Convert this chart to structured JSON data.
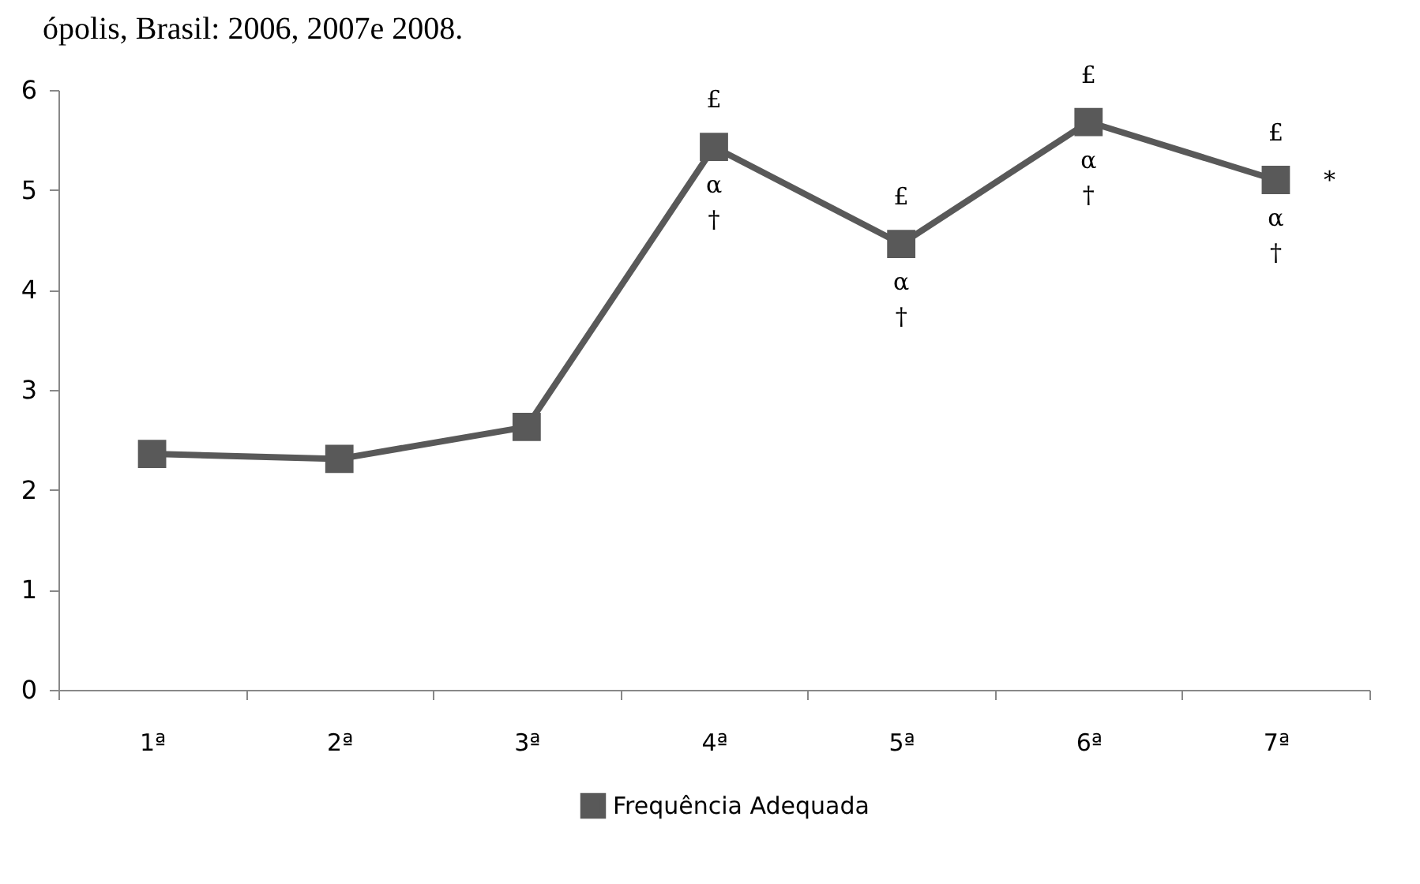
{
  "chart_data": {
    "type": "line",
    "title": "ópolis, Brasil: 2006, 2007e 2008.",
    "categories": [
      "1ª",
      "2ª",
      "3ª",
      "4ª",
      "5ª",
      "6ª",
      "7ª"
    ],
    "series": [
      {
        "name": "Frequência Adequada",
        "color": "#595959",
        "values": [
          2.36,
          2.31,
          2.63,
          5.43,
          4.46,
          5.68,
          5.1
        ]
      }
    ],
    "ylim": [
      0,
      6
    ],
    "yticks": [
      0,
      1,
      2,
      3,
      4,
      5,
      6
    ],
    "grid": false,
    "legend": "bottom",
    "marker": "square",
    "line_style": "solid",
    "annotations": [
      {
        "text": "£",
        "x": "4ª",
        "y": 5.43
      },
      {
        "text": "α",
        "x": "4ª",
        "y": 5.43
      },
      {
        "text": "†",
        "x": "4ª",
        "y": 5.43
      },
      {
        "text": "£",
        "x": "5ª",
        "y": 4.46
      },
      {
        "text": "α",
        "x": "5ª",
        "y": 4.46
      },
      {
        "text": "†",
        "x": "5ª",
        "y": 4.46
      },
      {
        "text": "£",
        "x": "6ª",
        "y": 5.68
      },
      {
        "text": "α",
        "x": "6ª",
        "y": 5.68
      },
      {
        "text": "†",
        "x": "6ª",
        "y": 5.68
      },
      {
        "text": "£",
        "x": "7ª",
        "y": 5.1
      },
      {
        "text": "α",
        "x": "7ª",
        "y": 5.1
      },
      {
        "text": "†",
        "x": "7ª",
        "y": 5.1
      },
      {
        "text": "*",
        "x": "7ª",
        "y": 5.1
      }
    ]
  }
}
